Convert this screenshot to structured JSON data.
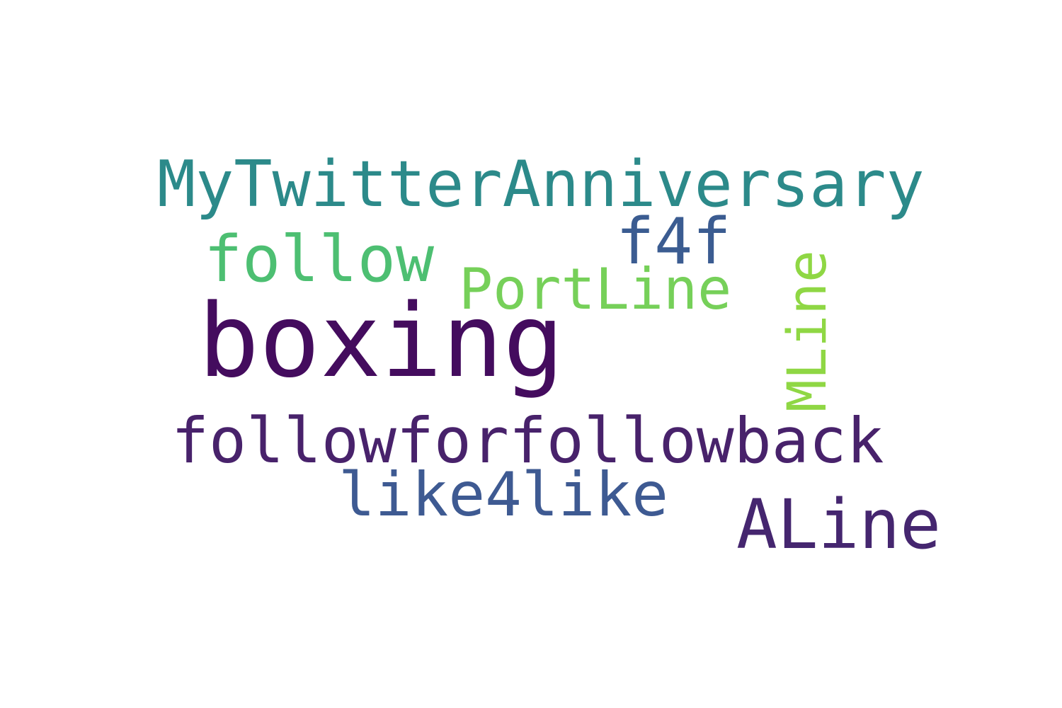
{
  "words": {
    "mytwitter": {
      "text": "MyTwitterAnniversary",
      "color": "#2c8a8a"
    },
    "f4f": {
      "text": "f4f",
      "color": "#3b5c91"
    },
    "follow": {
      "text": "follow",
      "color": "#4dbf72"
    },
    "portline": {
      "text": "PortLine",
      "color": "#76d059"
    },
    "mline": {
      "text": "MLine",
      "color": "#8fd744"
    },
    "boxing": {
      "text": "boxing",
      "color": "#440c5e"
    },
    "followforfollowback": {
      "text": "followforfollowback",
      "color": "#48226b"
    },
    "like4like": {
      "text": "like4like",
      "color": "#3e5a92"
    },
    "aline": {
      "text": "ALine",
      "color": "#45266f"
    }
  }
}
